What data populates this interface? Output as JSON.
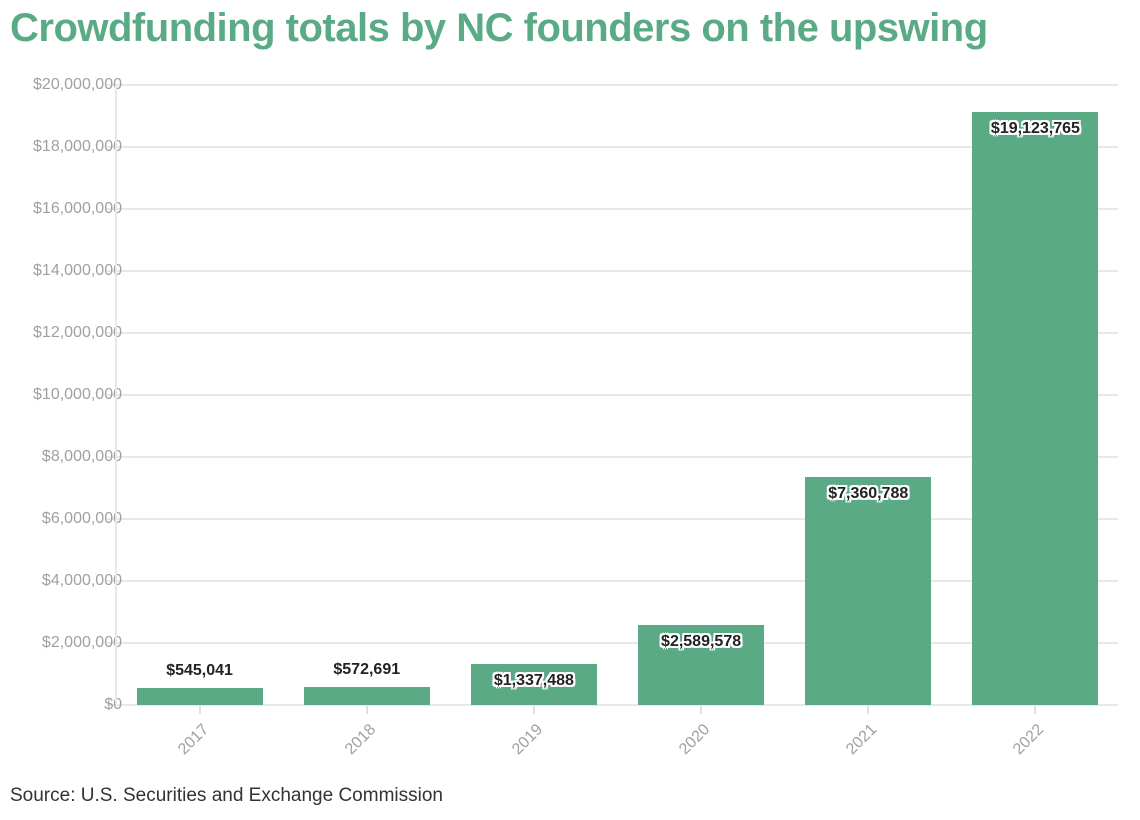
{
  "title": "Crowdfunding totals by NC founders on the upswing",
  "source": "Source: U.S. Securities and Exchange Commission",
  "colors": {
    "bar": "#5aab85",
    "title": "#5aab85",
    "grid": "#e8e8e8",
    "axis_text": "#a0a0a0"
  },
  "y_ticks": [
    "$0",
    "$2,000,000",
    "$4,000,000",
    "$6,000,000",
    "$8,000,000",
    "$10,000,000",
    "$12,000,000",
    "$14,000,000",
    "$16,000,000",
    "$18,000,000",
    "$20,000,000"
  ],
  "bars": [
    {
      "year": "2017",
      "label": "$545,041"
    },
    {
      "year": "2018",
      "label": "$572,691"
    },
    {
      "year": "2019",
      "label": "$1,337,488"
    },
    {
      "year": "2020",
      "label": "$2,589,578"
    },
    {
      "year": "2021",
      "label": "$7,360,788"
    },
    {
      "year": "2022",
      "label": "$19,123,765"
    }
  ],
  "chart_data": {
    "type": "bar",
    "title": "Crowdfunding totals by NC founders on the upswing",
    "categories": [
      "2017",
      "2018",
      "2019",
      "2020",
      "2021",
      "2022"
    ],
    "values": [
      545041,
      572691,
      1337488,
      2589578,
      7360788,
      19123765
    ],
    "data_labels": [
      "$545,041",
      "$572,691",
      "$1,337,488",
      "$2,589,578",
      "$7,360,788",
      "$19,123,765"
    ],
    "xlabel": "",
    "ylabel": "",
    "ylim": [
      0,
      20000000
    ],
    "y_tick_step": 2000000,
    "grid": true,
    "legend": "none",
    "source": "Source: U.S. Securities and Exchange Commission"
  }
}
